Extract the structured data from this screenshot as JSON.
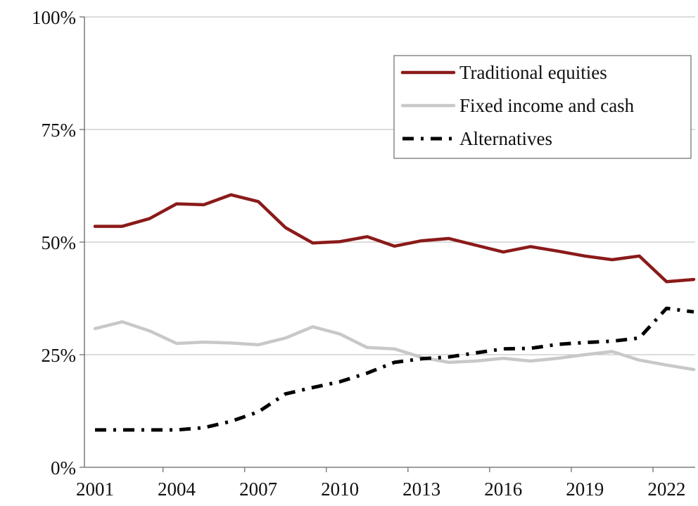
{
  "chart_data": {
    "type": "line",
    "title": "",
    "xlabel": "",
    "ylabel": "",
    "x": [
      2001,
      2002,
      2003,
      2004,
      2005,
      2006,
      2007,
      2008,
      2009,
      2010,
      2011,
      2012,
      2013,
      2014,
      2015,
      2016,
      2017,
      2018,
      2019,
      2020,
      2021,
      2022,
      2023
    ],
    "x_ticks": [
      "2001",
      "2004",
      "2007",
      "2010",
      "2013",
      "2016",
      "2019",
      "2022"
    ],
    "x_tick_values": [
      2001,
      2004,
      2007,
      2010,
      2013,
      2016,
      2019,
      2022
    ],
    "y_ticks": [
      "0%",
      "25%",
      "50%",
      "75%",
      "100%"
    ],
    "y_tick_values": [
      0,
      25,
      50,
      75,
      100
    ],
    "ylim": [
      0,
      100
    ],
    "xlim": [
      2001,
      2023
    ],
    "grid": "horizontal",
    "legend_position": "top-right",
    "series": [
      {
        "name": "Traditional equities",
        "color": "#8b1a1a",
        "style": "solid",
        "values": [
          53.5,
          53.5,
          55.2,
          58.5,
          58.3,
          60.5,
          59.0,
          53.2,
          49.8,
          50.1,
          51.2,
          49.1,
          50.3,
          50.8,
          49.3,
          47.8,
          49.0,
          48.0,
          46.9,
          46.1,
          46.9,
          41.2,
          41.7
        ]
      },
      {
        "name": "Fixed income and cash",
        "color": "#c8c8c8",
        "style": "solid",
        "values": [
          30.8,
          32.3,
          30.3,
          27.5,
          27.8,
          27.6,
          27.2,
          28.7,
          31.2,
          29.6,
          26.6,
          26.3,
          24.4,
          23.3,
          23.6,
          24.2,
          23.6,
          24.2,
          25.0,
          25.7,
          23.8,
          22.7,
          21.7
        ]
      },
      {
        "name": "Alternatives",
        "color": "#000000",
        "style": "dashdot",
        "values": [
          8.3,
          8.3,
          8.3,
          8.3,
          8.8,
          10.2,
          12.3,
          16.3,
          17.7,
          19.0,
          20.9,
          23.3,
          24.1,
          24.5,
          25.4,
          26.3,
          26.4,
          27.3,
          27.7,
          28.0,
          28.7,
          35.3,
          34.5
        ]
      }
    ]
  }
}
